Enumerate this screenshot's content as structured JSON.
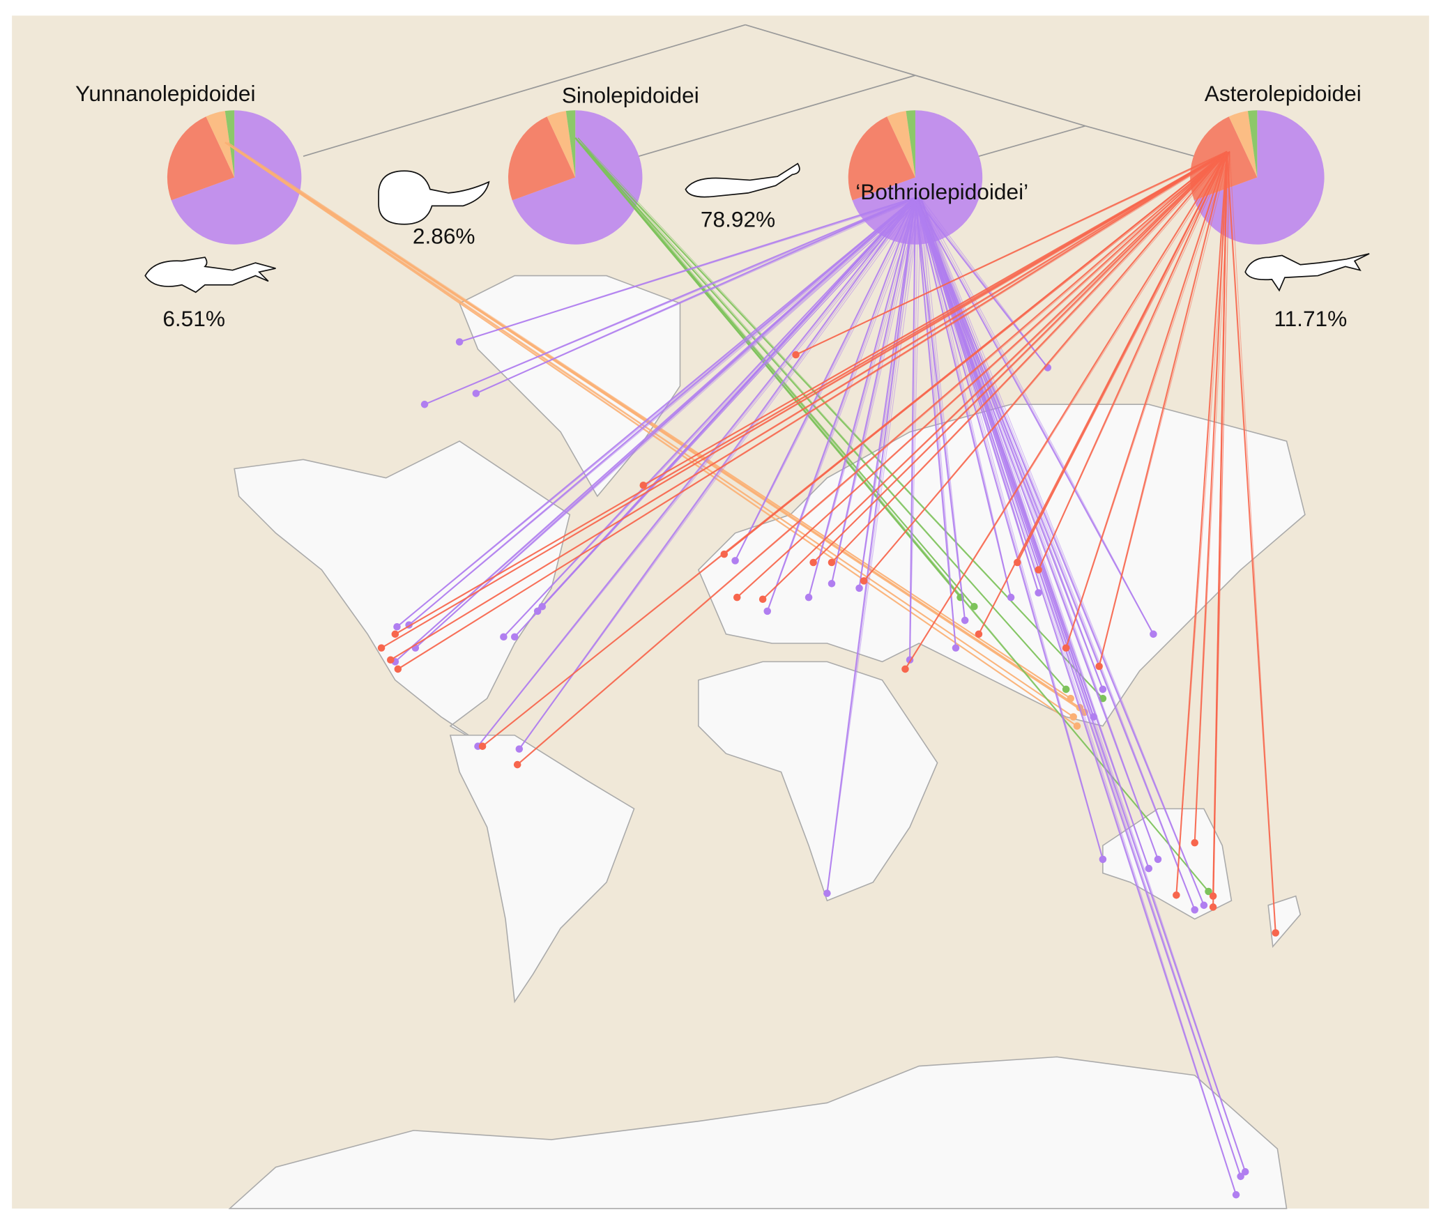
{
  "clades": [
    {
      "name": "Yunnanolepidoidei",
      "percent": "6.51%",
      "line_color": "#fbb074"
    },
    {
      "name": "Sinolepidoidei",
      "percent": "2.86%",
      "line_color": "#7cc25a"
    },
    {
      "name": "‘Bothriolepidoidei’",
      "percent": "78.92%",
      "line_color": "#b07ef0"
    },
    {
      "name": "Asterolepidoidei",
      "percent": "11.71%",
      "line_color": "#f7664d"
    }
  ],
  "pie_colors": {
    "purple": "#c291ec",
    "red": "#f4836b",
    "orange": "#fbbd84",
    "green": "#8cc86a"
  },
  "colors": {
    "background": "#f0e8d8",
    "land": "#f9f9f9",
    "coast": "#aaaaaa",
    "tree": "#999999"
  }
}
